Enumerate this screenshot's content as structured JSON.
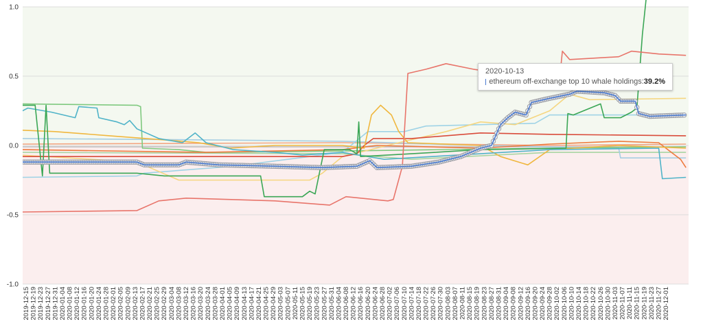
{
  "chart_data": {
    "type": "line",
    "title": "",
    "xlabel": "",
    "ylabel": "",
    "xlim": [
      "2019-12-13",
      "2020-12-13"
    ],
    "ylim": [
      -1.0,
      1.0
    ],
    "yticks": [
      "1.0",
      "0.5",
      "0.0",
      "-0.5",
      "-1.0"
    ],
    "ytick_values": [
      1.0,
      0.5,
      0.0,
      -0.5,
      -1.0
    ],
    "grid": true,
    "background_bands": {
      "positive": "#f4f8f0",
      "negative": "#fbeeee"
    },
    "xticks": [
      "2019-12-15",
      "2019-12-19",
      "2019-12-23",
      "2019-12-27",
      "2019-12-31",
      "2020-01-04",
      "2020-01-08",
      "2020-01-12",
      "2020-01-16",
      "2020-01-20",
      "2020-01-24",
      "2020-01-28",
      "2020-02-01",
      "2020-02-05",
      "2020-02-09",
      "2020-02-13",
      "2020-02-17",
      "2020-02-21",
      "2020-02-25",
      "2020-02-29",
      "2020-03-04",
      "2020-03-08",
      "2020-03-12",
      "2020-03-16",
      "2020-03-20",
      "2020-03-24",
      "2020-03-28",
      "2020-04-01",
      "2020-04-05",
      "2020-04-09",
      "2020-04-13",
      "2020-04-17",
      "2020-04-21",
      "2020-04-25",
      "2020-04-29",
      "2020-05-03",
      "2020-05-07",
      "2020-05-11",
      "2020-05-15",
      "2020-05-19",
      "2020-05-23",
      "2020-05-27",
      "2020-05-31",
      "2020-06-04",
      "2020-06-08",
      "2020-06-12",
      "2020-06-16",
      "2020-06-20",
      "2020-06-24",
      "2020-06-28",
      "2020-07-02",
      "2020-07-06",
      "2020-07-10",
      "2020-07-14",
      "2020-07-18",
      "2020-07-22",
      "2020-07-26",
      "2020-07-30",
      "2020-08-03",
      "2020-08-07",
      "2020-08-11",
      "2020-08-15",
      "2020-08-19",
      "2020-08-23",
      "2020-08-27",
      "2020-08-31",
      "2020-09-04",
      "2020-09-08",
      "2020-09-12",
      "2020-09-16",
      "2020-09-20",
      "2020-09-24",
      "2020-09-28",
      "2020-10-02",
      "2020-10-06",
      "2020-10-10",
      "2020-10-14",
      "2020-10-18",
      "2020-10-22",
      "2020-10-26",
      "2020-10-30",
      "2020-11-03",
      "2020-11-07",
      "2020-11-11",
      "2020-11-15",
      "2020-11-19",
      "2020-11-23",
      "2020-11-27",
      "2020-12-01"
    ],
    "series": [
      {
        "color": "#a8d5a2",
        "points": [
          [
            "2019-12-13",
            -0.05
          ],
          [
            "2020-06-06",
            -0.06
          ],
          [
            "2020-07-14",
            -0.1
          ],
          [
            "2020-09-28",
            -0.05
          ],
          [
            "2020-12-12",
            -0.05
          ]
        ]
      },
      {
        "color": "#bbbbbb",
        "points": [
          [
            "2019-12-13",
            -0.01
          ],
          [
            "2020-06-06",
            -0.01
          ],
          [
            "2020-10-09",
            -0.01
          ],
          [
            "2020-12-12",
            -0.01
          ]
        ]
      },
      {
        "color": "#f4a582",
        "points": [
          [
            "2019-12-13",
            0.01
          ],
          [
            "2020-06-06",
            0.02
          ],
          [
            "2020-09-28",
            0.0
          ],
          [
            "2020-12-12",
            0.01
          ]
        ]
      },
      {
        "color": "#a6cee3",
        "points": [
          [
            "2019-12-13",
            0.05
          ],
          [
            "2020-03-23",
            0.04
          ],
          [
            "2020-06-06",
            0.03
          ],
          [
            "2020-08-21",
            0.0
          ],
          [
            "2020-11-05",
            -0.02
          ],
          [
            "2020-11-06",
            -0.09
          ],
          [
            "2020-12-12",
            -0.09
          ]
        ]
      },
      {
        "color": "#7fc97f",
        "points": [
          [
            "2019-12-13",
            0.3
          ],
          [
            "2020-02-14",
            0.29
          ],
          [
            "2020-02-16",
            0.28
          ],
          [
            "2020-02-17",
            -0.02
          ],
          [
            "2020-03-08",
            -0.03
          ],
          [
            "2020-03-23",
            -0.05
          ],
          [
            "2020-06-06",
            -0.04
          ],
          [
            "2020-09-28",
            -0.02
          ],
          [
            "2020-12-12",
            -0.01
          ]
        ]
      },
      {
        "color": "#9fd3e6",
        "points": [
          [
            "2019-12-13",
            -0.23
          ],
          [
            "2020-02-14",
            -0.22
          ],
          [
            "2020-02-18",
            -0.2
          ],
          [
            "2020-04-07",
            -0.15
          ],
          [
            "2020-06-06",
            -0.05
          ],
          [
            "2020-06-20",
            0.1
          ],
          [
            "2020-07-10",
            0.1
          ],
          [
            "2020-07-22",
            0.14
          ],
          [
            "2020-08-21",
            0.15
          ],
          [
            "2020-09-20",
            0.16
          ],
          [
            "2020-09-28",
            0.22
          ],
          [
            "2020-12-12",
            0.22
          ]
        ]
      },
      {
        "color": "#f5d680",
        "points": [
          [
            "2019-12-13",
            -0.07
          ],
          [
            "2020-02-14",
            -0.12
          ],
          [
            "2020-03-08",
            -0.25
          ],
          [
            "2020-05-19",
            -0.25
          ],
          [
            "2020-05-26",
            -0.2
          ],
          [
            "2020-06-06",
            -0.08
          ],
          [
            "2020-07-07",
            0.02
          ],
          [
            "2020-08-02",
            0.1
          ],
          [
            "2020-08-21",
            0.17
          ],
          [
            "2020-09-09",
            0.15
          ],
          [
            "2020-09-28",
            0.25
          ],
          [
            "2020-10-09",
            0.37
          ],
          [
            "2020-10-20",
            0.33
          ],
          [
            "2020-12-12",
            0.34
          ]
        ]
      },
      {
        "color": "#ee7a3d",
        "points": [
          [
            "2019-12-13",
            -0.03
          ],
          [
            "2020-03-23",
            -0.05
          ],
          [
            "2020-06-06",
            -0.03
          ],
          [
            "2020-06-25",
            0.0
          ],
          [
            "2020-08-21",
            -0.02
          ],
          [
            "2020-09-28",
            0.01
          ],
          [
            "2020-11-05",
            0.03
          ],
          [
            "2020-11-27",
            0.02
          ],
          [
            "2020-12-09",
            -0.1
          ],
          [
            "2020-12-12",
            -0.16
          ]
        ]
      },
      {
        "color": "#d94b3a",
        "points": [
          [
            "2019-12-13",
            -0.08
          ],
          [
            "2020-06-06",
            -0.08
          ],
          [
            "2020-06-14",
            -0.06
          ],
          [
            "2020-06-18",
            0.0
          ],
          [
            "2020-06-23",
            0.05
          ],
          [
            "2020-07-14",
            0.05
          ],
          [
            "2020-08-21",
            0.09
          ],
          [
            "2020-09-28",
            0.08
          ],
          [
            "2020-12-12",
            0.07
          ]
        ]
      },
      {
        "color": "#f0b73e",
        "points": [
          [
            "2019-12-13",
            0.11
          ],
          [
            "2019-12-31",
            0.1
          ],
          [
            "2020-01-30",
            0.07
          ],
          [
            "2020-02-29",
            0.04
          ],
          [
            "2020-03-19",
            0.02
          ],
          [
            "2020-04-05",
            -0.02
          ],
          [
            "2020-04-30",
            0.0
          ],
          [
            "2020-06-06",
            0.0
          ],
          [
            "2020-06-18",
            -0.02
          ],
          [
            "2020-06-22",
            0.22
          ],
          [
            "2020-06-27",
            0.29
          ],
          [
            "2020-07-03",
            0.22
          ],
          [
            "2020-07-07",
            0.1
          ],
          [
            "2020-07-12",
            0.02
          ],
          [
            "2020-08-21",
            0.0
          ],
          [
            "2020-09-01",
            -0.08
          ],
          [
            "2020-09-16",
            -0.14
          ],
          [
            "2020-09-28",
            -0.03
          ],
          [
            "2020-11-05",
            0.0
          ],
          [
            "2020-12-12",
            -0.02
          ]
        ]
      },
      {
        "color": "#4fb3c8",
        "points": [
          [
            "2019-12-13",
            0.25
          ],
          [
            "2019-12-16",
            0.27
          ],
          [
            "2019-12-29",
            0.24
          ],
          [
            "2020-01-11",
            0.2
          ],
          [
            "2020-01-13",
            0.28
          ],
          [
            "2020-01-23",
            0.27
          ],
          [
            "2020-01-24",
            0.2
          ],
          [
            "2020-02-03",
            0.17
          ],
          [
            "2020-02-07",
            0.15
          ],
          [
            "2020-02-10",
            0.18
          ],
          [
            "2020-02-14",
            0.12
          ],
          [
            "2020-02-26",
            0.05
          ],
          [
            "2020-03-10",
            0.02
          ],
          [
            "2020-03-17",
            0.09
          ],
          [
            "2020-03-23",
            0.02
          ],
          [
            "2020-04-07",
            -0.03
          ],
          [
            "2020-04-30",
            -0.05
          ],
          [
            "2020-05-15",
            -0.07
          ],
          [
            "2020-06-06",
            -0.05
          ],
          [
            "2020-06-29",
            -0.1
          ],
          [
            "2020-08-21",
            -0.06
          ],
          [
            "2020-09-28",
            -0.03
          ],
          [
            "2020-11-27",
            -0.02
          ],
          [
            "2020-11-29",
            -0.24
          ],
          [
            "2020-12-12",
            -0.23
          ]
        ]
      },
      {
        "color": "#3aa655",
        "points": [
          [
            "2019-12-13",
            0.29
          ],
          [
            "2019-12-20",
            0.29
          ],
          [
            "2019-12-24",
            -0.22
          ],
          [
            "2019-12-26",
            0.29
          ],
          [
            "2019-12-28",
            -0.2
          ],
          [
            "2020-02-14",
            -0.2
          ],
          [
            "2020-02-29",
            -0.22
          ],
          [
            "2020-04-22",
            -0.22
          ],
          [
            "2020-04-24",
            -0.37
          ],
          [
            "2020-05-15",
            -0.37
          ],
          [
            "2020-05-19",
            -0.33
          ],
          [
            "2020-05-22",
            -0.35
          ],
          [
            "2020-05-27",
            -0.03
          ],
          [
            "2020-06-10",
            -0.03
          ],
          [
            "2020-06-14",
            -0.06
          ],
          [
            "2020-06-15",
            0.17
          ],
          [
            "2020-06-16",
            -0.08
          ],
          [
            "2020-07-14",
            -0.06
          ],
          [
            "2020-08-21",
            -0.03
          ],
          [
            "2020-10-07",
            -0.02
          ],
          [
            "2020-10-08",
            0.23
          ],
          [
            "2020-10-11",
            0.22
          ],
          [
            "2020-10-26",
            0.3
          ],
          [
            "2020-10-28",
            0.2
          ],
          [
            "2020-11-06",
            0.2
          ],
          [
            "2020-11-12",
            0.24
          ],
          [
            "2020-11-15",
            0.27
          ],
          [
            "2020-11-18",
            0.8
          ],
          [
            "2020-11-20",
            1.05
          ]
        ]
      },
      {
        "color": "#e8746a",
        "points": [
          [
            "2019-12-13",
            -0.48
          ],
          [
            "2020-02-14",
            -0.47
          ],
          [
            "2020-02-26",
            -0.4
          ],
          [
            "2020-03-12",
            -0.38
          ],
          [
            "2020-04-30",
            -0.4
          ],
          [
            "2020-05-30",
            -0.43
          ],
          [
            "2020-06-08",
            -0.37
          ],
          [
            "2020-07-01",
            -0.4
          ],
          [
            "2020-07-04",
            -0.39
          ],
          [
            "2020-07-09",
            -0.15
          ],
          [
            "2020-07-12",
            0.52
          ],
          [
            "2020-07-22",
            0.55
          ],
          [
            "2020-08-02",
            0.59
          ],
          [
            "2020-08-17",
            0.55
          ],
          [
            "2020-09-13",
            0.5
          ],
          [
            "2020-09-24",
            0.44
          ],
          [
            "2020-10-03",
            0.42
          ],
          [
            "2020-10-05",
            0.68
          ],
          [
            "2020-10-09",
            0.62
          ],
          [
            "2020-11-05",
            0.64
          ],
          [
            "2020-11-12",
            0.68
          ],
          [
            "2020-11-27",
            0.66
          ],
          [
            "2020-12-12",
            0.65
          ]
        ]
      },
      {
        "name": "ethereum off-exchange top 10 whale holdings",
        "color": "#4a7bd0",
        "markers": true,
        "points": [
          [
            "2019-12-13",
            -0.12
          ],
          [
            "2020-02-14",
            -0.12
          ],
          [
            "2020-02-18",
            -0.14
          ],
          [
            "2020-03-08",
            -0.14
          ],
          [
            "2020-03-12",
            -0.12
          ],
          [
            "2020-03-30",
            -0.14
          ],
          [
            "2020-04-30",
            -0.15
          ],
          [
            "2020-05-26",
            -0.16
          ],
          [
            "2020-06-14",
            -0.15
          ],
          [
            "2020-06-21",
            -0.11
          ],
          [
            "2020-06-25",
            -0.16
          ],
          [
            "2020-07-14",
            -0.15
          ],
          [
            "2020-07-29",
            -0.12
          ],
          [
            "2020-08-10",
            -0.08
          ],
          [
            "2020-08-21",
            -0.02
          ],
          [
            "2020-08-27",
            0.0
          ],
          [
            "2020-09-01",
            0.15
          ],
          [
            "2020-09-05",
            0.2
          ],
          [
            "2020-09-09",
            0.24
          ],
          [
            "2020-09-15",
            0.22
          ],
          [
            "2020-09-18",
            0.31
          ],
          [
            "2020-09-28",
            0.34
          ],
          [
            "2020-10-09",
            0.37
          ],
          [
            "2020-10-13",
            0.392
          ],
          [
            "2020-10-28",
            0.38
          ],
          [
            "2020-11-03",
            0.36
          ],
          [
            "2020-11-06",
            0.32
          ],
          [
            "2020-11-14",
            0.32
          ],
          [
            "2020-11-16",
            0.23
          ],
          [
            "2020-11-22",
            0.21
          ],
          [
            "2020-12-12",
            0.22
          ]
        ]
      }
    ]
  },
  "tooltip": {
    "date": "2020-10-13",
    "series_label": "ethereum off-exchange top 10 whale holdings: ",
    "value": "39.2%",
    "swatch_color": "#4a7bd0"
  }
}
